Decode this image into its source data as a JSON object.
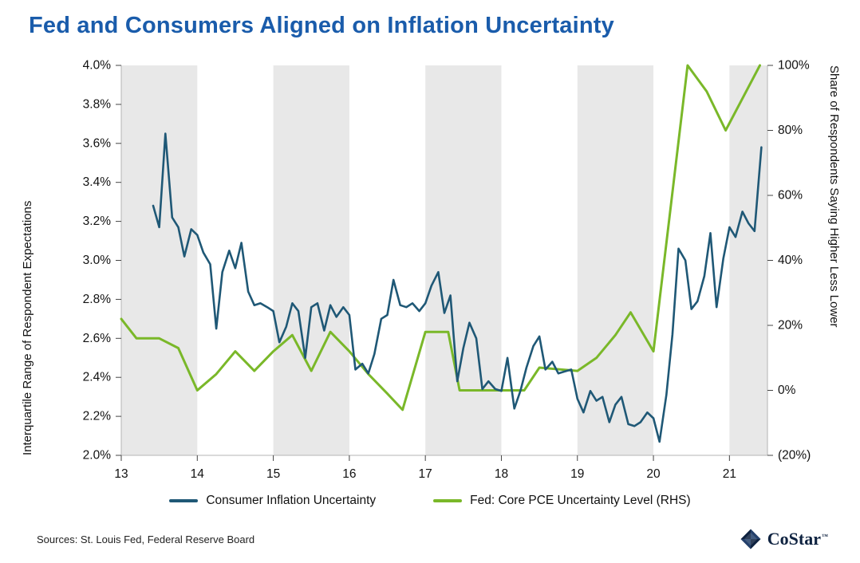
{
  "page": {
    "title": "Fed and Consumers Aligned on Inflation Uncertainty",
    "source_note": "Sources: St. Louis Fed, Federal Reserve Board",
    "logo_text": "CoStar",
    "logo_tm": "™"
  },
  "theme": {
    "title_color": "#1a5cab",
    "band_color": "#e8e8e8",
    "axis_line_color": "#b5b5b5",
    "tick_color": "#444444",
    "negative_tick_color": "#e03c31",
    "logo_color": "#0e2240"
  },
  "chart_data": {
    "type": "line",
    "title": "Fed and Consumers Aligned on Inflation Uncertainty",
    "grid": false,
    "legend_position": "bottom",
    "x_axis": {
      "min": 13,
      "max": 21.5,
      "tick_values": [
        13,
        14,
        15,
        16,
        17,
        18,
        19,
        20,
        21
      ],
      "tick_labels": [
        "13",
        "14",
        "15",
        "16",
        "17",
        "18",
        "19",
        "20",
        "21"
      ]
    },
    "left_axis": {
      "label": "Interquartile Range of Respondent Expectations",
      "min": 2.0,
      "max": 4.0,
      "tick_values": [
        4.0,
        3.8,
        3.6,
        3.4,
        3.2,
        3.0,
        2.8,
        2.6,
        2.4,
        2.2,
        2.0
      ],
      "tick_labels": [
        "4.0%",
        "3.8%",
        "3.6%",
        "3.4%",
        "3.2%",
        "3.0%",
        "2.8%",
        "2.6%",
        "2.4%",
        "2.2%",
        "2.0%"
      ]
    },
    "right_axis": {
      "label": "Share of Respondents Saying Higher Less Lower",
      "min": -20,
      "max": 100,
      "tick_values": [
        100,
        80,
        60,
        40,
        20,
        0,
        -20
      ],
      "tick_labels": [
        "100%",
        "80%",
        "60%",
        "40%",
        "20%",
        "0%",
        "(20%)"
      ]
    },
    "shaded_bands": [
      [
        13,
        14
      ],
      [
        15,
        16
      ],
      [
        17,
        18
      ],
      [
        19,
        20
      ],
      [
        21,
        21.5
      ]
    ],
    "series": [
      {
        "name": "Fed: Core PCE Uncertainty Level (RHS)",
        "axis": "right",
        "color": "#7ab829",
        "width": 3,
        "points": [
          [
            13.0,
            22
          ],
          [
            13.2,
            16
          ],
          [
            13.5,
            16
          ],
          [
            13.75,
            13
          ],
          [
            14.0,
            0
          ],
          [
            14.25,
            5
          ],
          [
            14.5,
            12
          ],
          [
            14.75,
            6
          ],
          [
            15.0,
            12
          ],
          [
            15.25,
            17
          ],
          [
            15.5,
            6
          ],
          [
            15.75,
            18
          ],
          [
            16.0,
            12
          ],
          [
            16.25,
            5
          ],
          [
            16.5,
            -1
          ],
          [
            16.7,
            -6
          ],
          [
            17.0,
            18
          ],
          [
            17.3,
            18
          ],
          [
            17.45,
            0
          ],
          [
            18.3,
            0
          ],
          [
            18.5,
            7
          ],
          [
            19.0,
            6
          ],
          [
            19.25,
            10
          ],
          [
            19.5,
            17
          ],
          [
            19.7,
            24
          ],
          [
            20.0,
            12
          ],
          [
            20.45,
            100
          ],
          [
            20.7,
            92
          ],
          [
            20.95,
            80
          ],
          [
            21.4,
            100
          ]
        ]
      },
      {
        "name": "Consumer Inflation Uncertainty",
        "axis": "left",
        "color": "#1f5876",
        "width": 2.6,
        "points": [
          [
            13.42,
            3.28
          ],
          [
            13.5,
            3.17
          ],
          [
            13.58,
            3.65
          ],
          [
            13.67,
            3.22
          ],
          [
            13.75,
            3.17
          ],
          [
            13.83,
            3.02
          ],
          [
            13.92,
            3.16
          ],
          [
            14.0,
            3.13
          ],
          [
            14.08,
            3.04
          ],
          [
            14.17,
            2.98
          ],
          [
            14.25,
            2.65
          ],
          [
            14.33,
            2.94
          ],
          [
            14.42,
            3.05
          ],
          [
            14.5,
            2.96
          ],
          [
            14.58,
            3.09
          ],
          [
            14.67,
            2.84
          ],
          [
            14.75,
            2.77
          ],
          [
            14.83,
            2.78
          ],
          [
            14.92,
            2.76
          ],
          [
            15.0,
            2.74
          ],
          [
            15.08,
            2.58
          ],
          [
            15.17,
            2.66
          ],
          [
            15.25,
            2.78
          ],
          [
            15.33,
            2.74
          ],
          [
            15.42,
            2.5
          ],
          [
            15.5,
            2.76
          ],
          [
            15.58,
            2.78
          ],
          [
            15.67,
            2.64
          ],
          [
            15.75,
            2.77
          ],
          [
            15.83,
            2.71
          ],
          [
            15.92,
            2.76
          ],
          [
            16.0,
            2.72
          ],
          [
            16.08,
            2.44
          ],
          [
            16.17,
            2.47
          ],
          [
            16.25,
            2.42
          ],
          [
            16.33,
            2.52
          ],
          [
            16.42,
            2.7
          ],
          [
            16.5,
            2.72
          ],
          [
            16.58,
            2.9
          ],
          [
            16.67,
            2.77
          ],
          [
            16.75,
            2.76
          ],
          [
            16.83,
            2.78
          ],
          [
            16.92,
            2.74
          ],
          [
            17.0,
            2.78
          ],
          [
            17.08,
            2.87
          ],
          [
            17.17,
            2.94
          ],
          [
            17.25,
            2.73
          ],
          [
            17.33,
            2.82
          ],
          [
            17.42,
            2.38
          ],
          [
            17.5,
            2.55
          ],
          [
            17.58,
            2.68
          ],
          [
            17.67,
            2.6
          ],
          [
            17.75,
            2.34
          ],
          [
            17.83,
            2.38
          ],
          [
            17.92,
            2.34
          ],
          [
            18.0,
            2.33
          ],
          [
            18.08,
            2.5
          ],
          [
            18.17,
            2.24
          ],
          [
            18.25,
            2.33
          ],
          [
            18.33,
            2.45
          ],
          [
            18.42,
            2.56
          ],
          [
            18.5,
            2.61
          ],
          [
            18.58,
            2.44
          ],
          [
            18.67,
            2.48
          ],
          [
            18.75,
            2.42
          ],
          [
            18.83,
            2.43
          ],
          [
            18.92,
            2.44
          ],
          [
            19.0,
            2.29
          ],
          [
            19.08,
            2.22
          ],
          [
            19.17,
            2.33
          ],
          [
            19.25,
            2.28
          ],
          [
            19.33,
            2.3
          ],
          [
            19.42,
            2.17
          ],
          [
            19.5,
            2.26
          ],
          [
            19.58,
            2.3
          ],
          [
            19.67,
            2.16
          ],
          [
            19.75,
            2.15
          ],
          [
            19.83,
            2.17
          ],
          [
            19.92,
            2.22
          ],
          [
            20.0,
            2.19
          ],
          [
            20.08,
            2.07
          ],
          [
            20.17,
            2.31
          ],
          [
            20.25,
            2.62
          ],
          [
            20.33,
            3.06
          ],
          [
            20.42,
            3.0
          ],
          [
            20.5,
            2.75
          ],
          [
            20.58,
            2.79
          ],
          [
            20.67,
            2.92
          ],
          [
            20.75,
            3.14
          ],
          [
            20.83,
            2.76
          ],
          [
            20.92,
            3.01
          ],
          [
            21.0,
            3.17
          ],
          [
            21.08,
            3.12
          ],
          [
            21.17,
            3.25
          ],
          [
            21.25,
            3.19
          ],
          [
            21.33,
            3.15
          ],
          [
            21.42,
            3.58
          ]
        ]
      }
    ],
    "legend": [
      "Consumer Inflation Uncertainty",
      "Fed: Core PCE Uncertainty Level (RHS)"
    ]
  }
}
